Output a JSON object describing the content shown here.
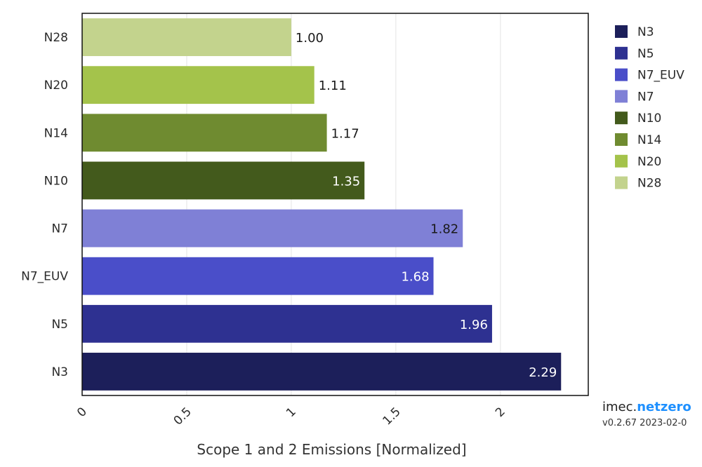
{
  "chart_data": {
    "type": "bar",
    "orientation": "horizontal",
    "categories": [
      "N28",
      "N20",
      "N14",
      "N10",
      "N7",
      "N7_EUV",
      "N5",
      "N3"
    ],
    "values": [
      1.0,
      1.11,
      1.17,
      1.35,
      1.82,
      1.68,
      1.96,
      2.29
    ],
    "value_labels": [
      "1.00",
      "1.11",
      "1.17",
      "1.35",
      "1.82",
      "1.68",
      "1.96",
      "2.29"
    ],
    "colors": [
      "#c3d38d",
      "#a4c34b",
      "#6f8b30",
      "#435a1c",
      "#7f80d6",
      "#4a4ec9",
      "#2e3191",
      "#1c1f5a"
    ],
    "xlabel": "Scope 1 and 2 Emissions [Normalized]",
    "ylabel": "",
    "title": "",
    "xlim": [
      0,
      2.42
    ],
    "xticks": [
      0,
      0.5,
      1,
      1.5,
      2
    ],
    "xtick_labels": [
      "0",
      "0.5",
      "1",
      "1.5",
      "2"
    ],
    "grid": "vertical",
    "legend": {
      "placement": "right",
      "entries": [
        {
          "name": "N3",
          "color": "#1c1f5a"
        },
        {
          "name": "N5",
          "color": "#2e3191"
        },
        {
          "name": "N7_EUV",
          "color": "#4a4ec9"
        },
        {
          "name": "N7",
          "color": "#7f80d6"
        },
        {
          "name": "N10",
          "color": "#435a1c"
        },
        {
          "name": "N14",
          "color": "#6f8b30"
        },
        {
          "name": "N20",
          "color": "#a4c34b"
        },
        {
          "name": "N28",
          "color": "#c3d38d"
        }
      ]
    }
  },
  "branding": {
    "name_prefix": "imec.",
    "name_accent": "netzero",
    "version": "v0.2.67 2023-02-0"
  }
}
